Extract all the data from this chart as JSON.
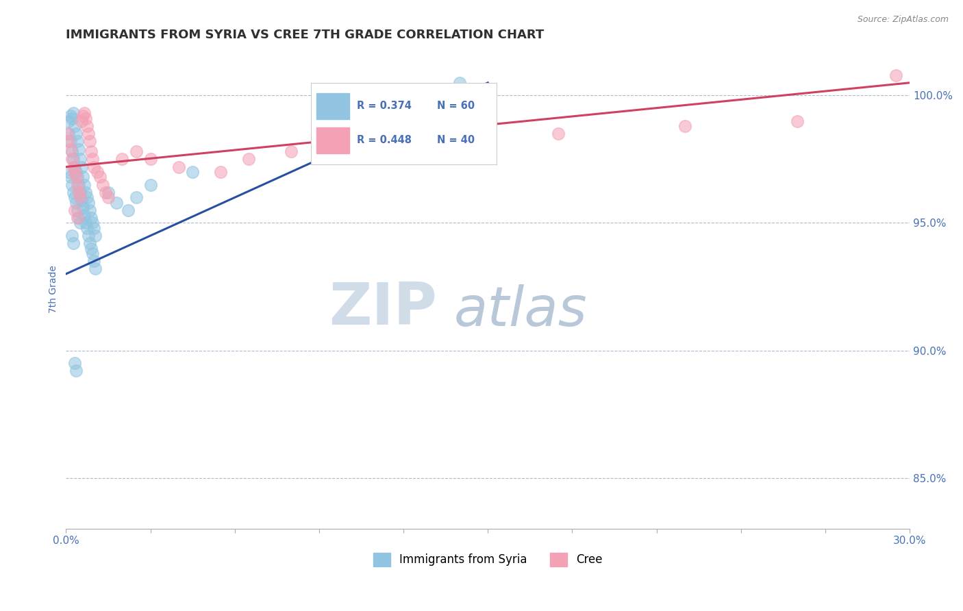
{
  "title": "IMMIGRANTS FROM SYRIA VS CREE 7TH GRADE CORRELATION CHART",
  "source_text": "Source: ZipAtlas.com",
  "xlabel": "",
  "ylabel": "7th Grade",
  "xmin": 0.0,
  "xmax": 30.0,
  "ymin": 83.0,
  "ymax": 101.8,
  "yticks": [
    85.0,
    90.0,
    95.0,
    100.0
  ],
  "ytick_labels": [
    "85.0%",
    "90.0%",
    "95.0%",
    "100.0%"
  ],
  "xticks": [
    0.0,
    3.0,
    6.0,
    9.0,
    12.0,
    15.0,
    18.0,
    21.0,
    24.0,
    27.0,
    30.0
  ],
  "xtick_labels": [
    "0.0%",
    "",
    "",
    "",
    "",
    "",
    "",
    "",
    "",
    "",
    "30.0%"
  ],
  "r_blue": 0.374,
  "n_blue": 60,
  "r_pink": 0.448,
  "n_pink": 40,
  "blue_color": "#90C4E0",
  "pink_color": "#F4A0B5",
  "trend_blue": "#2850A0",
  "trend_pink": "#D04060",
  "watermark_zip": "ZIP",
  "watermark_atlas": "atlas",
  "watermark_color_zip": "#D0DCE8",
  "watermark_color_atlas": "#B8C8D8",
  "title_color": "#303030",
  "axis_color": "#4870B8",
  "grid_color": "#B0B8CC",
  "blue_trend_x0": 0.0,
  "blue_trend_y0": 93.0,
  "blue_trend_x1": 15.0,
  "blue_trend_y1": 100.5,
  "pink_trend_x0": 0.0,
  "pink_trend_y0": 97.2,
  "pink_trend_x1": 30.0,
  "pink_trend_y1": 100.5,
  "blue_scatter_x": [
    0.1,
    0.15,
    0.2,
    0.25,
    0.3,
    0.35,
    0.4,
    0.45,
    0.5,
    0.55,
    0.6,
    0.65,
    0.7,
    0.75,
    0.8,
    0.85,
    0.9,
    0.95,
    1.0,
    1.05,
    0.1,
    0.15,
    0.2,
    0.25,
    0.3,
    0.35,
    0.4,
    0.45,
    0.5,
    0.55,
    0.6,
    0.65,
    0.7,
    0.75,
    0.8,
    0.85,
    0.9,
    0.95,
    1.0,
    1.05,
    0.1,
    0.15,
    0.2,
    0.25,
    0.3,
    0.35,
    0.4,
    0.45,
    0.5,
    1.5,
    1.8,
    2.2,
    2.5,
    3.0,
    4.5,
    14.0,
    0.2,
    0.25,
    0.3,
    0.35
  ],
  "blue_scatter_y": [
    99.0,
    99.2,
    99.1,
    99.3,
    98.8,
    98.5,
    98.2,
    97.9,
    97.5,
    97.2,
    96.8,
    96.5,
    96.2,
    96.0,
    95.8,
    95.5,
    95.2,
    95.0,
    94.8,
    94.5,
    98.5,
    98.2,
    97.8,
    97.5,
    97.2,
    97.0,
    96.8,
    96.5,
    96.2,
    95.9,
    95.6,
    95.3,
    95.0,
    94.8,
    94.5,
    94.2,
    94.0,
    93.8,
    93.5,
    93.2,
    97.0,
    96.8,
    96.5,
    96.2,
    96.0,
    95.8,
    95.5,
    95.2,
    95.0,
    96.2,
    95.8,
    95.5,
    96.0,
    96.5,
    97.0,
    100.5,
    94.5,
    94.2,
    89.5,
    89.2
  ],
  "pink_scatter_x": [
    0.05,
    0.1,
    0.15,
    0.2,
    0.25,
    0.3,
    0.35,
    0.4,
    0.45,
    0.5,
    0.55,
    0.6,
    0.65,
    0.7,
    0.75,
    0.8,
    0.85,
    0.9,
    0.95,
    1.0,
    1.1,
    1.2,
    1.3,
    1.4,
    1.5,
    2.0,
    2.5,
    3.0,
    4.0,
    5.5,
    6.5,
    8.0,
    10.0,
    14.0,
    17.5,
    22.0,
    26.0,
    29.5,
    0.3,
    0.4
  ],
  "pink_scatter_y": [
    98.5,
    98.2,
    97.9,
    97.5,
    97.2,
    97.0,
    96.8,
    96.5,
    96.2,
    96.0,
    99.0,
    99.2,
    99.3,
    99.1,
    98.8,
    98.5,
    98.2,
    97.8,
    97.5,
    97.2,
    97.0,
    96.8,
    96.5,
    96.2,
    96.0,
    97.5,
    97.8,
    97.5,
    97.2,
    97.0,
    97.5,
    97.8,
    98.0,
    98.2,
    98.5,
    98.8,
    99.0,
    100.8,
    95.5,
    95.2
  ]
}
